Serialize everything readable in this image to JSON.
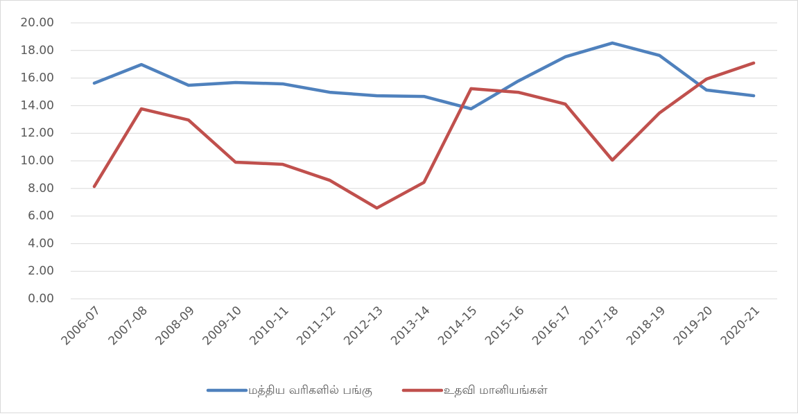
{
  "chart_data": {
    "type": "line",
    "categories": [
      "2006-07",
      "2007-08",
      "2008-09",
      "2009-10",
      "2010-11",
      "2011-12",
      "2012-13",
      "2013-14",
      "2014-15",
      "2015-16",
      "2016-17",
      "2017-18",
      "2018-19",
      "2019-20",
      "2020-21"
    ],
    "series": [
      {
        "name": "மத்திய வரிகளில் பங்கு",
        "color": "#4f81bd",
        "values": [
          15.63,
          16.98,
          15.48,
          15.68,
          15.58,
          14.97,
          14.72,
          14.67,
          13.77,
          15.78,
          17.54,
          18.54,
          17.64,
          15.13,
          14.72
        ]
      },
      {
        "name": "உதவி மானியங்கள்",
        "color": "#c0504d",
        "values": [
          8.14,
          13.77,
          12.96,
          9.9,
          9.75,
          8.59,
          6.58,
          8.44,
          15.23,
          14.97,
          14.12,
          10.05,
          13.47,
          15.93,
          17.09
        ]
      }
    ],
    "ylim": [
      0,
      20
    ],
    "yticks": [
      {
        "value": 0,
        "label": "0.00"
      },
      {
        "value": 2,
        "label": "2.00"
      },
      {
        "value": 4,
        "label": "4.00"
      },
      {
        "value": 6,
        "label": "6.00"
      },
      {
        "value": 8,
        "label": "8.00"
      },
      {
        "value": 10,
        "label": "10.00"
      },
      {
        "value": 12,
        "label": "12.00"
      },
      {
        "value": 14,
        "label": "14.00"
      },
      {
        "value": 16,
        "label": "16.00"
      },
      {
        "value": 18,
        "label": "18.00"
      },
      {
        "value": 20,
        "label": "20.00"
      }
    ],
    "grid": true,
    "legend": "bottom"
  }
}
